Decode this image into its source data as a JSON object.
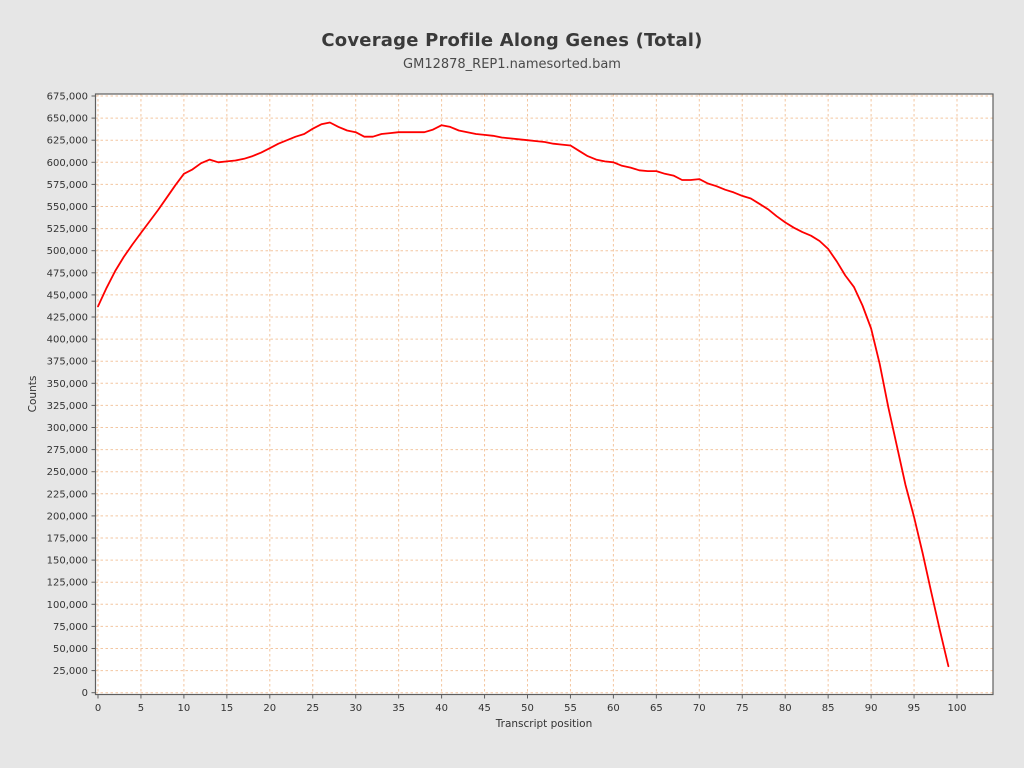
{
  "window": {
    "background_color": "#e6e6e6"
  },
  "chart": {
    "title": "Coverage Profile Along Genes (Total)",
    "subtitle": "GM12878_REP1.namesorted.bam",
    "xlabel": "Transcript position",
    "ylabel": "Counts"
  },
  "chart_data": {
    "type": "line",
    "title": "Coverage Profile Along Genes (Total)",
    "subtitle": "GM12878_REP1.namesorted.bam",
    "xlabel": "Transcript position",
    "ylabel": "Counts",
    "grid": true,
    "legend": "none",
    "xlim": [
      0,
      104
    ],
    "ylim": [
      0,
      675000
    ],
    "x_ticks": [
      0,
      5,
      10,
      15,
      20,
      25,
      30,
      35,
      40,
      45,
      50,
      55,
      60,
      65,
      70,
      75,
      80,
      85,
      90,
      95,
      100
    ],
    "y_ticks": [
      0,
      25000,
      50000,
      75000,
      100000,
      125000,
      150000,
      175000,
      200000,
      225000,
      250000,
      275000,
      300000,
      325000,
      350000,
      375000,
      400000,
      425000,
      450000,
      475000,
      500000,
      525000,
      550000,
      575000,
      600000,
      625000,
      650000,
      675000
    ],
    "colors": {
      "line": "#ff0000",
      "grid": "#f3c6a0",
      "axis": "#5f5f5f",
      "tick_text": "#333333",
      "plot_background": "#ffffff",
      "outer_background": "#e6e6e6"
    },
    "series": [
      {
        "name": "GM12878_REP1.namesorted.bam",
        "x": [
          0,
          1,
          2,
          3,
          4,
          5,
          6,
          7,
          8,
          9,
          10,
          11,
          12,
          13,
          14,
          15,
          16,
          17,
          18,
          19,
          20,
          21,
          22,
          23,
          24,
          25,
          26,
          27,
          28,
          29,
          30,
          31,
          32,
          33,
          34,
          35,
          36,
          37,
          38,
          39,
          40,
          41,
          42,
          43,
          44,
          45,
          46,
          47,
          48,
          49,
          50,
          51,
          52,
          53,
          54,
          55,
          56,
          57,
          58,
          59,
          60,
          61,
          62,
          63,
          64,
          65,
          66,
          67,
          68,
          69,
          70,
          71,
          72,
          73,
          74,
          75,
          76,
          77,
          78,
          79,
          80,
          81,
          82,
          83,
          84,
          85,
          86,
          87,
          88,
          89,
          90,
          91,
          92,
          93,
          94,
          95,
          96,
          97,
          98,
          99
        ],
        "values": [
          437000,
          458000,
          477000,
          493000,
          507000,
          520000,
          533000,
          546000,
          560000,
          574000,
          587000,
          592000,
          599000,
          603000,
          600000,
          601000,
          602000,
          604000,
          607000,
          611000,
          616000,
          621000,
          625000,
          629000,
          632000,
          638000,
          643000,
          645000,
          640000,
          636000,
          634000,
          629000,
          629000,
          632000,
          633000,
          634000,
          634000,
          634000,
          634000,
          637000,
          642000,
          640000,
          636000,
          634000,
          632000,
          631000,
          630000,
          628000,
          627000,
          626000,
          625000,
          624000,
          623000,
          621000,
          620000,
          619000,
          613000,
          607000,
          603000,
          601000,
          600000,
          596000,
          594000,
          591000,
          590000,
          590000,
          587000,
          585000,
          580000,
          580000,
          581000,
          576000,
          573000,
          569000,
          566000,
          562000,
          559000,
          553000,
          547000,
          539000,
          532000,
          526000,
          521000,
          517000,
          511000,
          502000,
          488000,
          472000,
          459000,
          438000,
          412000,
          372000,
          323000,
          279000,
          235000,
          199000,
          158000,
          114000,
          71000,
          30000
        ]
      }
    ]
  }
}
